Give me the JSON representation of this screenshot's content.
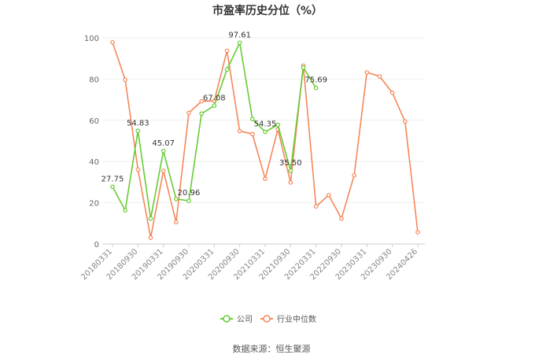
{
  "chart_data": {
    "type": "line",
    "title": "市盈率历史分位（%）",
    "ylim": [
      0,
      100
    ],
    "yticks": [
      0,
      20,
      40,
      60,
      80,
      100
    ],
    "x": [
      "20180331",
      "20180630",
      "20180930",
      "20181231",
      "20190331",
      "20190630",
      "20190930",
      "20191231",
      "20200331",
      "20200630",
      "20200930",
      "20201231",
      "20210331",
      "20210630",
      "20210930",
      "20211231",
      "20220331",
      "20220630",
      "20220930",
      "20221231",
      "20230331",
      "20230630",
      "20230930",
      "20231231",
      "20240426"
    ],
    "xticks": [
      "20180331",
      "20180930",
      "20190331",
      "20190930",
      "20200331",
      "20200930",
      "20210331",
      "20210930",
      "20220331",
      "20220930",
      "20230331",
      "20230930",
      "20240426"
    ],
    "series": [
      {
        "name": "公司",
        "color": "#66cc33",
        "values": [
          27.75,
          16.3,
          54.83,
          12.3,
          45.07,
          21.8,
          20.96,
          63.2,
          67.08,
          84.6,
          97.61,
          60.6,
          54.35,
          57.8,
          35.5,
          85.6,
          75.69,
          null,
          null,
          null,
          null,
          null,
          null,
          null,
          null
        ],
        "labels": {
          "0": "27.75",
          "2": "54.83",
          "4": "45.07",
          "6": "20.96",
          "8": "67.08",
          "10": "97.61",
          "12": "54.35",
          "14": "35.50",
          "16": "75.69"
        }
      },
      {
        "name": "行业中位数",
        "color": "#f5875a",
        "values": [
          97.8,
          79.6,
          36.1,
          3.0,
          35.5,
          10.6,
          63.6,
          69.2,
          69.4,
          93.7,
          54.8,
          53.3,
          31.6,
          55.6,
          29.8,
          86.5,
          18.2,
          23.7,
          12.3,
          33.3,
          83.2,
          81.3,
          73.3,
          59.4,
          5.7
        ]
      }
    ],
    "legend_position": "bottom"
  },
  "source_text": "数据来源：恒生聚源"
}
